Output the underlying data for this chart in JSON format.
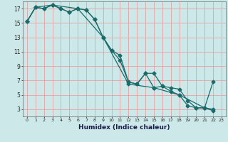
{
  "xlabel": "Humidex (Indice chaleur)",
  "background_color": "#cce8e8",
  "grid_color": "#e8a0a0",
  "line_color": "#1a6b6b",
  "xlim": [
    -0.5,
    23.5
  ],
  "ylim": [
    2,
    18
  ],
  "xticks": [
    0,
    1,
    2,
    3,
    4,
    5,
    6,
    7,
    8,
    9,
    10,
    11,
    12,
    13,
    14,
    15,
    16,
    17,
    18,
    19,
    20,
    21,
    22,
    23
  ],
  "yticks": [
    3,
    5,
    7,
    9,
    11,
    13,
    15,
    17
  ],
  "series1_x": [
    0,
    1,
    2,
    3,
    4,
    5,
    6,
    7,
    8,
    9,
    10,
    11,
    12,
    13,
    14,
    15,
    16,
    17,
    18,
    19,
    20,
    21,
    22
  ],
  "series1_y": [
    15.2,
    17.2,
    17.0,
    17.5,
    17.0,
    16.5,
    17.0,
    16.8,
    15.5,
    13.0,
    11.2,
    10.5,
    6.8,
    6.5,
    8.0,
    8.0,
    6.2,
    6.0,
    5.8,
    4.2,
    3.2,
    3.2,
    3.0
  ],
  "series2_x": [
    0,
    1,
    2,
    3,
    4,
    5,
    6,
    7,
    8,
    9,
    10,
    11,
    12,
    13,
    14,
    15,
    16,
    17,
    18,
    19,
    20,
    21,
    22
  ],
  "series2_y": [
    15.2,
    17.2,
    17.0,
    17.5,
    17.0,
    16.5,
    17.0,
    16.8,
    15.5,
    13.0,
    11.2,
    9.8,
    6.8,
    6.5,
    8.0,
    6.0,
    6.2,
    5.5,
    5.0,
    3.5,
    3.2,
    3.2,
    2.8
  ],
  "series3_x": [
    0,
    1,
    3,
    6,
    9,
    12,
    15,
    18,
    21,
    22
  ],
  "series3_y": [
    15.2,
    17.2,
    17.5,
    17.0,
    13.0,
    6.5,
    6.0,
    5.0,
    3.2,
    6.8
  ],
  "marker": "D",
  "markersize": 2.5,
  "linewidth": 0.9
}
